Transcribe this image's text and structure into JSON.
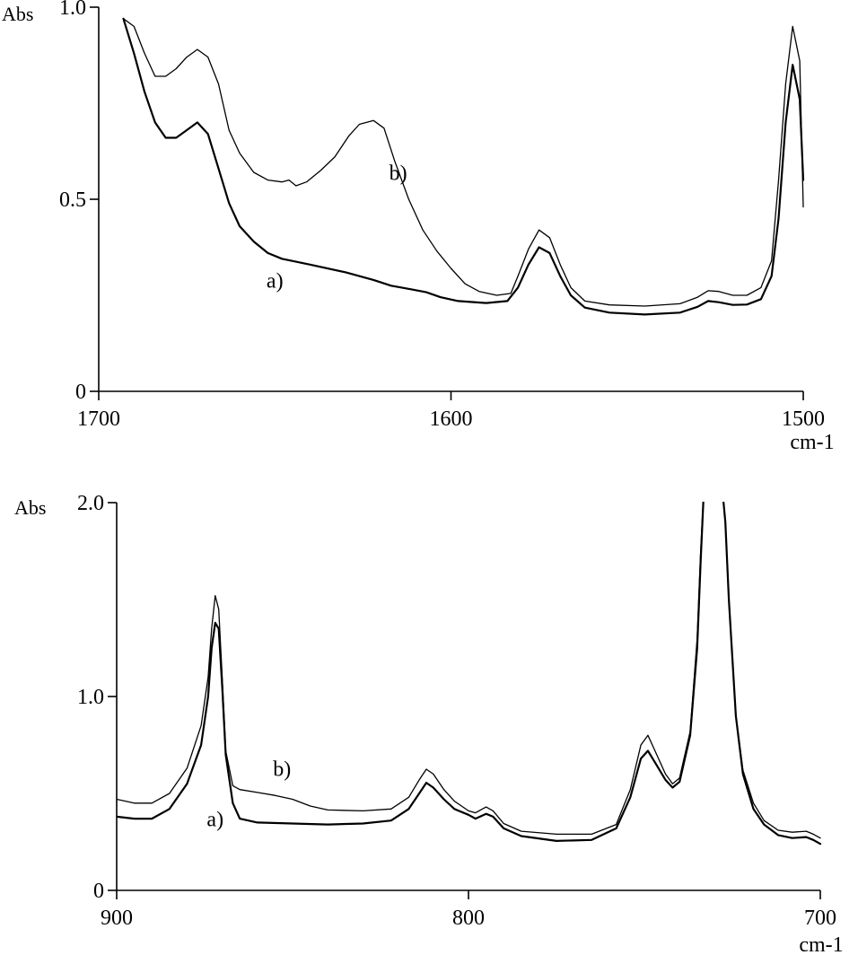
{
  "chart_data": [
    {
      "type": "line",
      "ylabel": "Abs",
      "xlabel": "cm-1",
      "xlim": [
        1700,
        1500
      ],
      "ylim": [
        0,
        1.0
      ],
      "x_reversed": true,
      "grid": false,
      "x_ticks": [
        1700,
        1600,
        1500
      ],
      "x_tick_labels": [
        "1700",
        "1600",
        "1500"
      ],
      "y_ticks": [
        0,
        0.5,
        1.0
      ],
      "y_tick_labels": [
        "0",
        "0.5",
        "1.0"
      ],
      "series": [
        {
          "name": "a)",
          "label_at": [
            1650,
            0.27
          ],
          "points": [
            [
              1693,
              0.97
            ],
            [
              1690,
              0.88
            ],
            [
              1687,
              0.78
            ],
            [
              1684,
              0.7
            ],
            [
              1681,
              0.66
            ],
            [
              1678,
              0.66
            ],
            [
              1675,
              0.68
            ],
            [
              1672,
              0.7
            ],
            [
              1669,
              0.67
            ],
            [
              1666,
              0.58
            ],
            [
              1663,
              0.49
            ],
            [
              1660,
              0.43
            ],
            [
              1656,
              0.39
            ],
            [
              1652,
              0.36
            ],
            [
              1648,
              0.345
            ],
            [
              1640,
              0.33
            ],
            [
              1630,
              0.31
            ],
            [
              1622,
              0.29
            ],
            [
              1617,
              0.275
            ],
            [
              1614,
              0.27
            ],
            [
              1611,
              0.265
            ],
            [
              1607,
              0.258
            ],
            [
              1603,
              0.245
            ],
            [
              1598,
              0.235
            ],
            [
              1590,
              0.23
            ],
            [
              1584,
              0.235
            ],
            [
              1581,
              0.27
            ],
            [
              1578,
              0.33
            ],
            [
              1575,
              0.375
            ],
            [
              1572,
              0.36
            ],
            [
              1569,
              0.3
            ],
            [
              1566,
              0.25
            ],
            [
              1562,
              0.218
            ],
            [
              1555,
              0.205
            ],
            [
              1545,
              0.2
            ],
            [
              1535,
              0.205
            ],
            [
              1530,
              0.22
            ],
            [
              1527,
              0.235
            ],
            [
              1524,
              0.232
            ],
            [
              1520,
              0.225
            ],
            [
              1516,
              0.226
            ],
            [
              1512,
              0.24
            ],
            [
              1509,
              0.3
            ],
            [
              1507,
              0.45
            ],
            [
              1505,
              0.7
            ],
            [
              1503,
              0.85
            ],
            [
              1501,
              0.76
            ],
            [
              1500,
              0.55
            ]
          ]
        },
        {
          "name": "b)",
          "label_at": [
            1615,
            0.55
          ],
          "points": [
            [
              1693,
              0.97
            ],
            [
              1690,
              0.95
            ],
            [
              1687,
              0.88
            ],
            [
              1684,
              0.82
            ],
            [
              1681,
              0.82
            ],
            [
              1678,
              0.84
            ],
            [
              1675,
              0.87
            ],
            [
              1672,
              0.89
            ],
            [
              1669,
              0.87
            ],
            [
              1666,
              0.8
            ],
            [
              1663,
              0.68
            ],
            [
              1660,
              0.62
            ],
            [
              1656,
              0.57
            ],
            [
              1652,
              0.55
            ],
            [
              1648,
              0.545
            ],
            [
              1646,
              0.55
            ],
            [
              1644,
              0.535
            ],
            [
              1641,
              0.545
            ],
            [
              1637,
              0.575
            ],
            [
              1633,
              0.61
            ],
            [
              1629,
              0.665
            ],
            [
              1626,
              0.695
            ],
            [
              1622,
              0.705
            ],
            [
              1619,
              0.685
            ],
            [
              1616,
              0.6
            ],
            [
              1612,
              0.5
            ],
            [
              1608,
              0.42
            ],
            [
              1604,
              0.365
            ],
            [
              1600,
              0.32
            ],
            [
              1596,
              0.28
            ],
            [
              1592,
              0.26
            ],
            [
              1587,
              0.25
            ],
            [
              1583,
              0.255
            ],
            [
              1581,
              0.3
            ],
            [
              1578,
              0.37
            ],
            [
              1575,
              0.42
            ],
            [
              1572,
              0.4
            ],
            [
              1569,
              0.33
            ],
            [
              1566,
              0.27
            ],
            [
              1562,
              0.235
            ],
            [
              1555,
              0.225
            ],
            [
              1545,
              0.222
            ],
            [
              1535,
              0.228
            ],
            [
              1530,
              0.245
            ],
            [
              1527,
              0.262
            ],
            [
              1524,
              0.26
            ],
            [
              1520,
              0.25
            ],
            [
              1516,
              0.25
            ],
            [
              1512,
              0.27
            ],
            [
              1509,
              0.34
            ],
            [
              1507,
              0.55
            ],
            [
              1505,
              0.8
            ],
            [
              1503,
              0.95
            ],
            [
              1501,
              0.86
            ],
            [
              1500,
              0.48
            ]
          ]
        }
      ]
    },
    {
      "type": "line",
      "ylabel": "Abs",
      "xlabel": "cm-1",
      "xlim": [
        900,
        700
      ],
      "ylim": [
        0,
        2.0
      ],
      "x_reversed": true,
      "grid": false,
      "x_ticks": [
        900,
        800,
        700
      ],
      "x_tick_labels": [
        "900",
        "800",
        "700"
      ],
      "y_ticks": [
        0,
        1.0,
        2.0
      ],
      "y_tick_labels": [
        "0",
        "1.0",
        "2.0"
      ],
      "series": [
        {
          "name": "a)",
          "label_at": [
            872,
            0.33
          ],
          "points": [
            [
              900,
              0.38
            ],
            [
              895,
              0.37
            ],
            [
              890,
              0.37
            ],
            [
              885,
              0.42
            ],
            [
              880,
              0.55
            ],
            [
              876,
              0.75
            ],
            [
              874,
              1.0
            ],
            [
              873,
              1.25
            ],
            [
              872,
              1.38
            ],
            [
              871,
              1.35
            ],
            [
              870,
              1.05
            ],
            [
              869,
              0.7
            ],
            [
              867,
              0.45
            ],
            [
              865,
              0.37
            ],
            [
              860,
              0.35
            ],
            [
              850,
              0.345
            ],
            [
              840,
              0.34
            ],
            [
              830,
              0.345
            ],
            [
              822,
              0.36
            ],
            [
              817,
              0.42
            ],
            [
              814,
              0.5
            ],
            [
              812,
              0.555
            ],
            [
              810,
              0.53
            ],
            [
              807,
              0.47
            ],
            [
              804,
              0.42
            ],
            [
              800,
              0.39
            ],
            [
              798,
              0.37
            ],
            [
              795,
              0.395
            ],
            [
              793,
              0.38
            ],
            [
              790,
              0.32
            ],
            [
              785,
              0.28
            ],
            [
              775,
              0.255
            ],
            [
              765,
              0.26
            ],
            [
              758,
              0.32
            ],
            [
              754,
              0.48
            ],
            [
              751,
              0.68
            ],
            [
              749,
              0.72
            ],
            [
              747,
              0.66
            ],
            [
              744,
              0.57
            ],
            [
              742,
              0.53
            ],
            [
              740,
              0.56
            ],
            [
              737,
              0.8
            ],
            [
              735,
              1.25
            ],
            [
              734,
              1.7
            ],
            [
              733,
              2.1
            ],
            [
              728,
              2.1
            ],
            [
              727,
              1.9
            ],
            [
              726,
              1.5
            ],
            [
              724,
              0.9
            ],
            [
              722,
              0.6
            ],
            [
              719,
              0.42
            ],
            [
              716,
              0.34
            ],
            [
              712,
              0.285
            ],
            [
              708,
              0.27
            ],
            [
              704,
              0.275
            ],
            [
              702,
              0.26
            ],
            [
              700,
              0.24
            ]
          ]
        },
        {
          "name": "b)",
          "label_at": [
            853,
            0.59
          ],
          "points": [
            [
              900,
              0.47
            ],
            [
              895,
              0.45
            ],
            [
              890,
              0.45
            ],
            [
              885,
              0.5
            ],
            [
              880,
              0.63
            ],
            [
              876,
              0.85
            ],
            [
              874,
              1.1
            ],
            [
              873,
              1.35
            ],
            [
              872,
              1.52
            ],
            [
              871,
              1.45
            ],
            [
              870,
              1.1
            ],
            [
              869,
              0.72
            ],
            [
              867,
              0.54
            ],
            [
              865,
              0.52
            ],
            [
              860,
              0.505
            ],
            [
              855,
              0.49
            ],
            [
              850,
              0.47
            ],
            [
              845,
              0.435
            ],
            [
              840,
              0.415
            ],
            [
              830,
              0.41
            ],
            [
              822,
              0.42
            ],
            [
              817,
              0.48
            ],
            [
              814,
              0.57
            ],
            [
              812,
              0.625
            ],
            [
              810,
              0.6
            ],
            [
              807,
              0.52
            ],
            [
              804,
              0.46
            ],
            [
              800,
              0.41
            ],
            [
              798,
              0.4
            ],
            [
              795,
              0.43
            ],
            [
              793,
              0.41
            ],
            [
              790,
              0.345
            ],
            [
              785,
              0.305
            ],
            [
              775,
              0.29
            ],
            [
              765,
              0.29
            ],
            [
              758,
              0.34
            ],
            [
              754,
              0.52
            ],
            [
              751,
              0.75
            ],
            [
              749,
              0.8
            ],
            [
              747,
              0.72
            ],
            [
              744,
              0.6
            ],
            [
              742,
              0.55
            ],
            [
              740,
              0.58
            ],
            [
              737,
              0.82
            ],
            [
              735,
              1.3
            ],
            [
              734,
              1.75
            ],
            [
              733,
              2.1
            ],
            [
              728,
              2.1
            ],
            [
              727,
              1.9
            ],
            [
              726,
              1.5
            ],
            [
              724,
              0.9
            ],
            [
              722,
              0.62
            ],
            [
              719,
              0.45
            ],
            [
              716,
              0.36
            ],
            [
              712,
              0.31
            ],
            [
              708,
              0.3
            ],
            [
              704,
              0.305
            ],
            [
              702,
              0.29
            ],
            [
              700,
              0.27
            ]
          ]
        }
      ]
    }
  ]
}
